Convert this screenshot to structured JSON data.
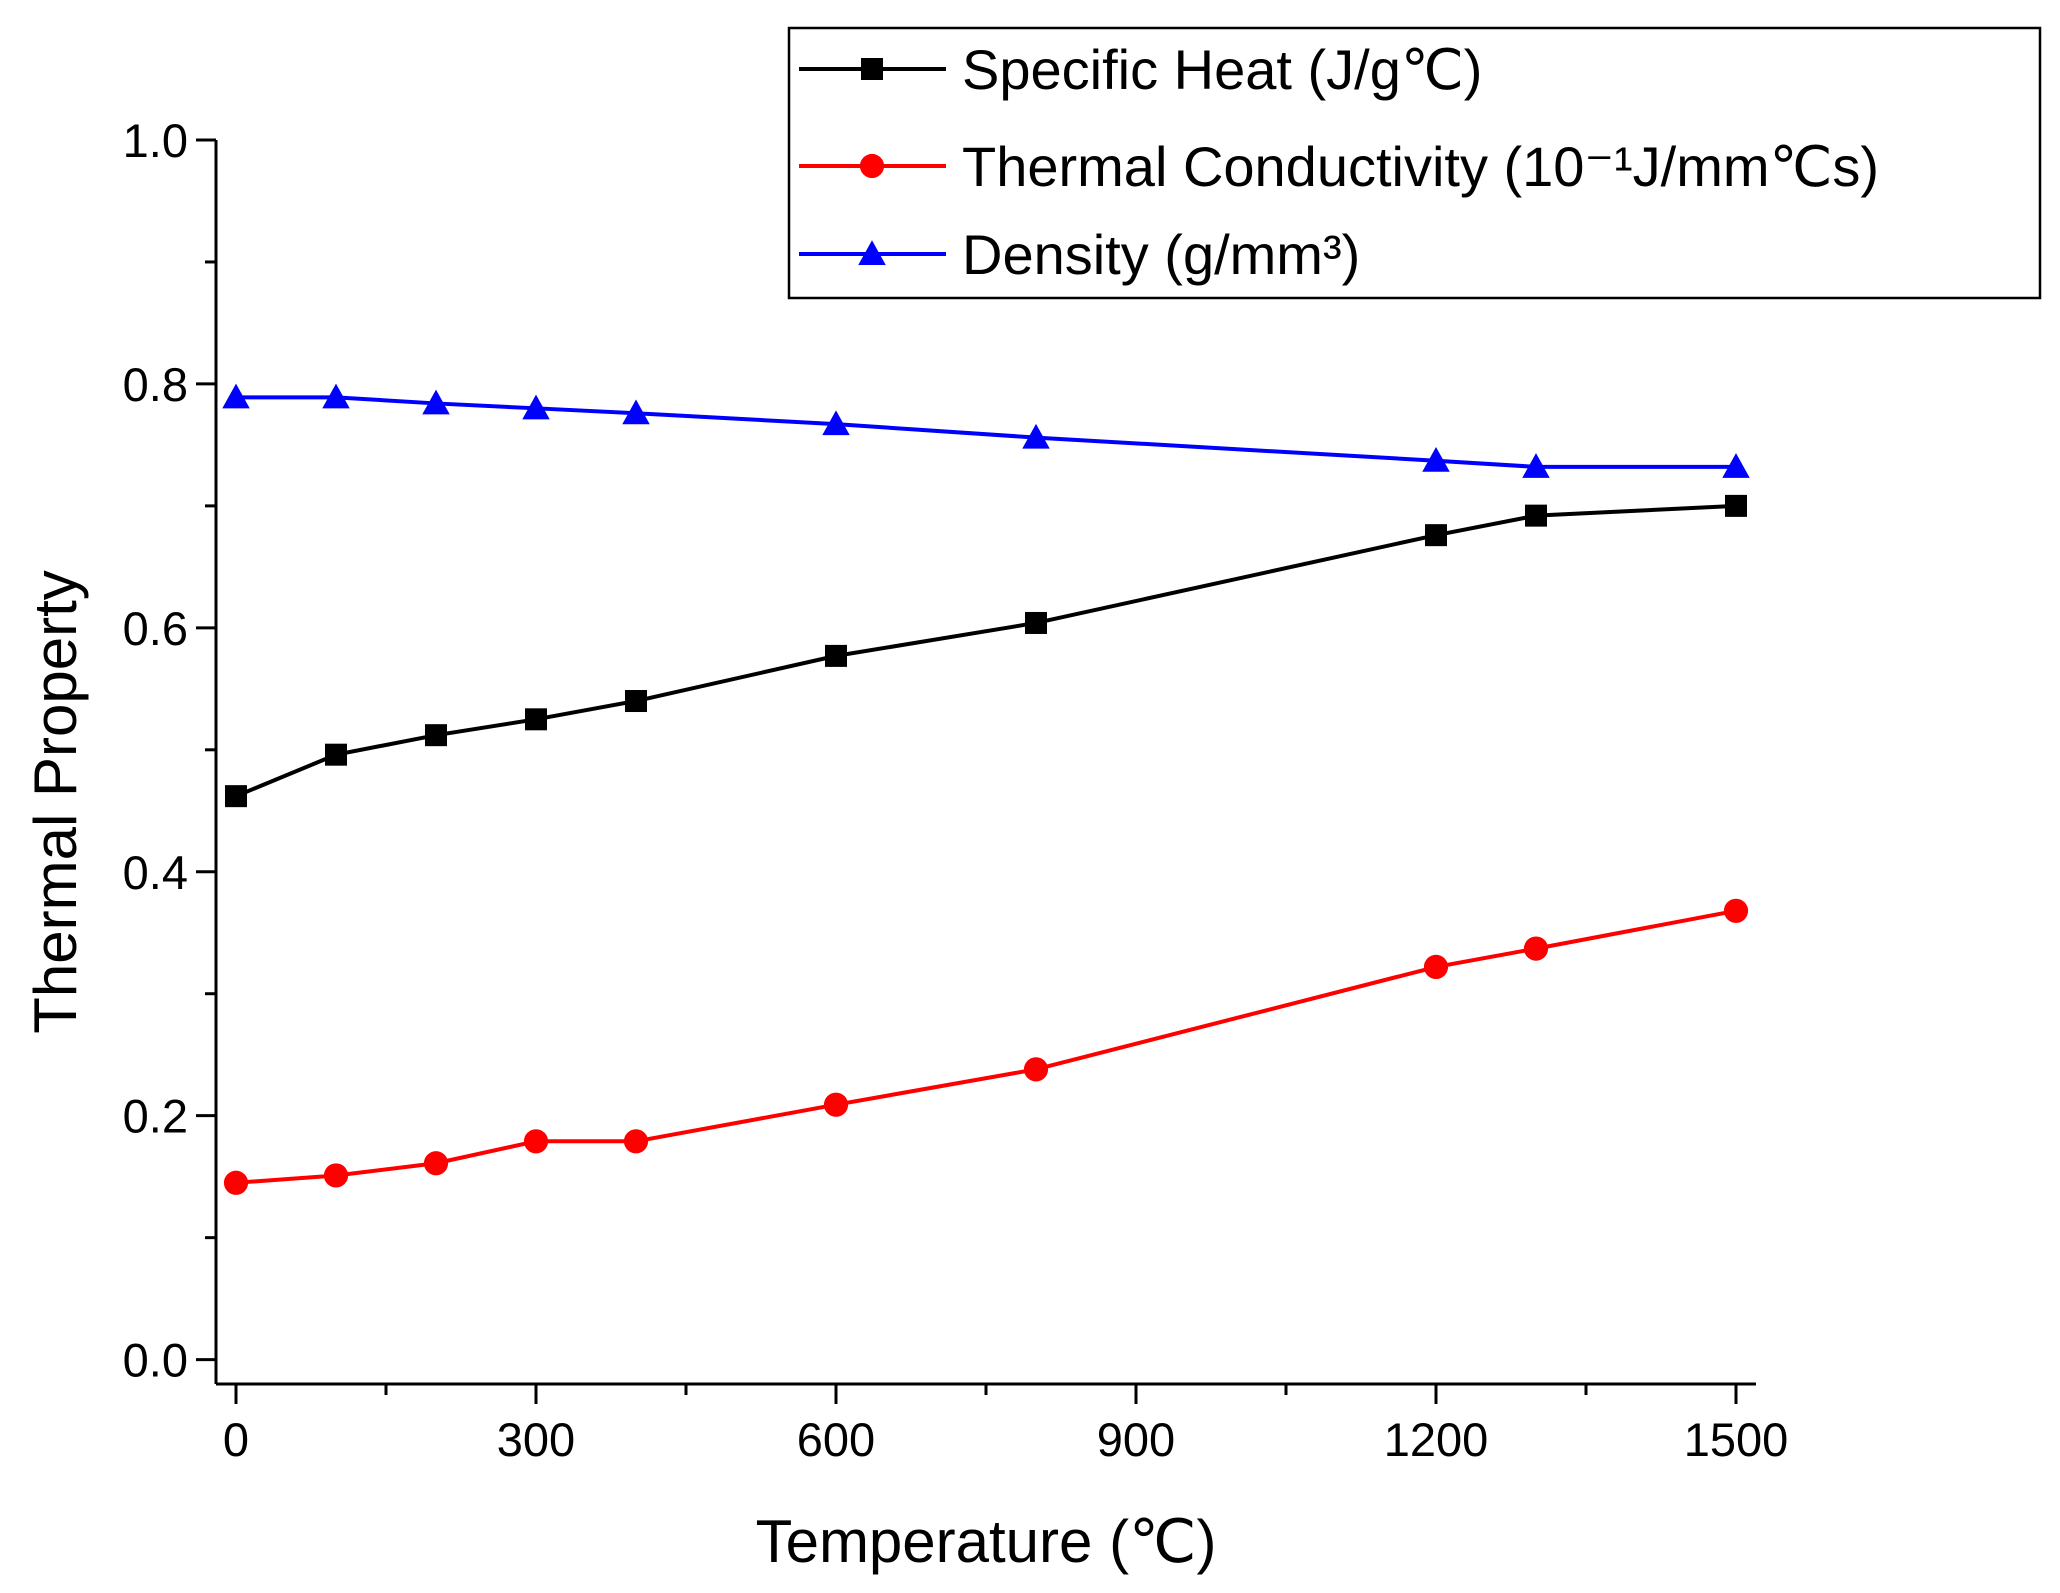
{
  "chart_data": {
    "type": "line",
    "title": "",
    "xlabel": "Temperature (℃)",
    "ylabel": "Thermal Property",
    "xlim": [
      -20,
      1520
    ],
    "ylim": [
      -0.02,
      1.0
    ],
    "xticks": [
      0,
      300,
      600,
      900,
      1200,
      1500
    ],
    "xtick_labels": [
      "0",
      "300",
      "600",
      "900",
      "1200",
      "1500"
    ],
    "xminor_step": 150,
    "yticks": [
      0.0,
      0.2,
      0.4,
      0.6,
      0.8,
      1.0
    ],
    "ytick_labels": [
      "0.0",
      "0.2",
      "0.4",
      "0.6",
      "0.8",
      "1.0"
    ],
    "yminor_step": 0.1,
    "grid": false,
    "legend_position": "top-right",
    "x": [
      0,
      100,
      200,
      300,
      400,
      600,
      800,
      1200,
      1300,
      1500
    ],
    "series": [
      {
        "name": "Specific Heat (J/g℃)",
        "color": "#000000",
        "marker": "square",
        "values": [
          0.462,
          0.496,
          0.512,
          0.525,
          0.54,
          0.577,
          0.604,
          0.676,
          0.692,
          0.7
        ]
      },
      {
        "name": "Thermal Conductivity (10⁻¹J/mm℃s)",
        "color": "#ff0000",
        "marker": "circle",
        "values": [
          0.145,
          0.151,
          0.161,
          0.179,
          0.179,
          0.209,
          0.238,
          0.322,
          0.337,
          0.368
        ]
      },
      {
        "name": "Density (g/mm³)",
        "color": "#0000ff",
        "marker": "triangle",
        "values": [
          0.789,
          0.789,
          0.784,
          0.78,
          0.776,
          0.767,
          0.756,
          0.737,
          0.732,
          0.732
        ]
      }
    ]
  }
}
